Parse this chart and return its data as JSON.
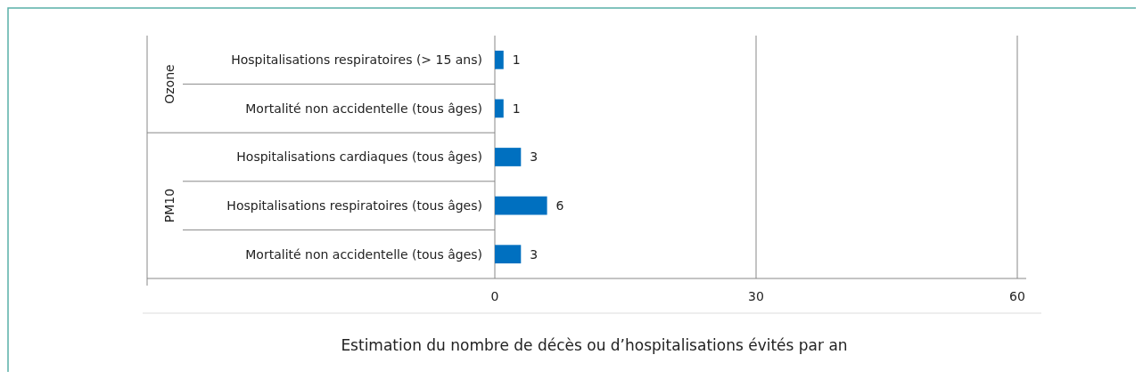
{
  "chart_data": {
    "type": "bar",
    "orientation": "horizontal",
    "xlabel": "Estimation du nombre de décès ou d’hospitalisations évités par an",
    "categories": [
      "Hospitalisations respiratoires (> 15 ans)",
      "Mortalité non accidentelle (tous âges)",
      "Hospitalisations cardiaques (tous âges)",
      "Hospitalisations respiratoires (tous âges)",
      "Mortalité non accidentelle (tous âges)"
    ],
    "values": [
      1,
      1,
      3,
      6,
      3
    ],
    "color": "#0070c0",
    "data_labels": true,
    "xlim": [
      0,
      60
    ],
    "xticks": [
      0,
      30,
      60
    ],
    "grid": "x",
    "annotations": [
      "Ozone",
      "PM10"
    ]
  }
}
